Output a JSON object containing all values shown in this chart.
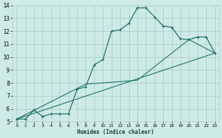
{
  "xlabel": "Humidex (Indice chaleur)",
  "bg_color": "#ceeae6",
  "grid_color": "#a8cdc9",
  "line_color": "#1a6e64",
  "xlim": [
    -0.5,
    23.5
  ],
  "ylim": [
    5,
    14
  ],
  "xticks": [
    0,
    1,
    2,
    3,
    4,
    5,
    6,
    7,
    8,
    9,
    10,
    11,
    12,
    13,
    14,
    15,
    16,
    17,
    18,
    19,
    20,
    21,
    22,
    23
  ],
  "yticks": [
    5,
    6,
    7,
    8,
    9,
    10,
    11,
    12,
    13,
    14
  ],
  "curve1_x": [
    0,
    1,
    2,
    3,
    4,
    5,
    6,
    7,
    8,
    9,
    10,
    11,
    12,
    13,
    14,
    15,
    16,
    17,
    18,
    19,
    20,
    21,
    22,
    23
  ],
  "curve1_y": [
    5.2,
    5.2,
    5.9,
    5.4,
    5.6,
    5.6,
    5.6,
    7.5,
    7.7,
    9.4,
    9.8,
    12.0,
    12.1,
    12.6,
    13.8,
    13.8,
    13.1,
    12.4,
    12.3,
    11.4,
    11.35,
    11.55,
    11.55,
    10.3
  ],
  "line2_x": [
    0,
    23
  ],
  "line2_y": [
    5.2,
    10.3
  ],
  "line3_x": [
    0,
    8,
    14,
    20,
    23
  ],
  "line3_y": [
    5.2,
    7.9,
    8.2,
    11.35,
    10.3
  ]
}
